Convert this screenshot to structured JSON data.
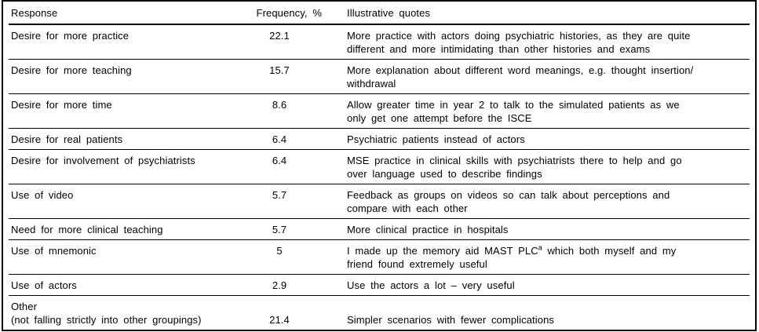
{
  "table": {
    "columns": [
      {
        "label": "Response"
      },
      {
        "label": "Frequency, %"
      },
      {
        "label": "Illustrative quotes"
      }
    ],
    "rows": [
      {
        "response_lines": [
          "Desire for more practice"
        ],
        "frequency": "22.1",
        "quote_lines": [
          "More practice with actors doing psychiatric histories, as they are quite",
          "different and more intimidating than other histories and exams"
        ]
      },
      {
        "response_lines": [
          "Desire for more teaching"
        ],
        "frequency": "15.7",
        "quote_lines": [
          "More explanation about different word meanings, e.g. thought insertion/",
          "withdrawal"
        ]
      },
      {
        "response_lines": [
          "Desire for more time"
        ],
        "frequency": "8.6",
        "quote_lines": [
          "Allow greater time in year 2 to talk to the simulated patients as we",
          "only get one attempt before the ISCE"
        ]
      },
      {
        "response_lines": [
          "Desire for real patients"
        ],
        "frequency": "6.4",
        "quote_lines": [
          "Psychiatric patients instead of actors"
        ]
      },
      {
        "response_lines": [
          "Desire for involvement of psychiatrists"
        ],
        "frequency": "6.4",
        "quote_lines": [
          "MSE practice in clinical skills with psychiatrists there to help and go",
          "over language used to describe findings"
        ]
      },
      {
        "response_lines": [
          "Use of video"
        ],
        "frequency": "5.7",
        "quote_lines": [
          "Feedback as groups on videos so can talk about perceptions and",
          "compare with each other"
        ]
      },
      {
        "response_lines": [
          "Need for more clinical teaching"
        ],
        "frequency": "5.7",
        "quote_lines": [
          "More clinical practice in hospitals"
        ]
      },
      {
        "response_lines": [
          "Use of mnemonic"
        ],
        "frequency": "5",
        "quote_lines": [
          "I made up the memory aid MAST PLC^a^ which both myself and my",
          "friend found extremely useful"
        ]
      },
      {
        "response_lines": [
          "Use of actors"
        ],
        "frequency": "2.9",
        "quote_lines": [
          "Use the actors a lot – very useful"
        ]
      },
      {
        "response_lines": [
          "Other",
          "(not falling strictly into other groupings)"
        ],
        "frequency": "21.4",
        "quote_lines": [
          "Simpler scenarios with fewer complications"
        ],
        "align": "bottom"
      }
    ]
  }
}
